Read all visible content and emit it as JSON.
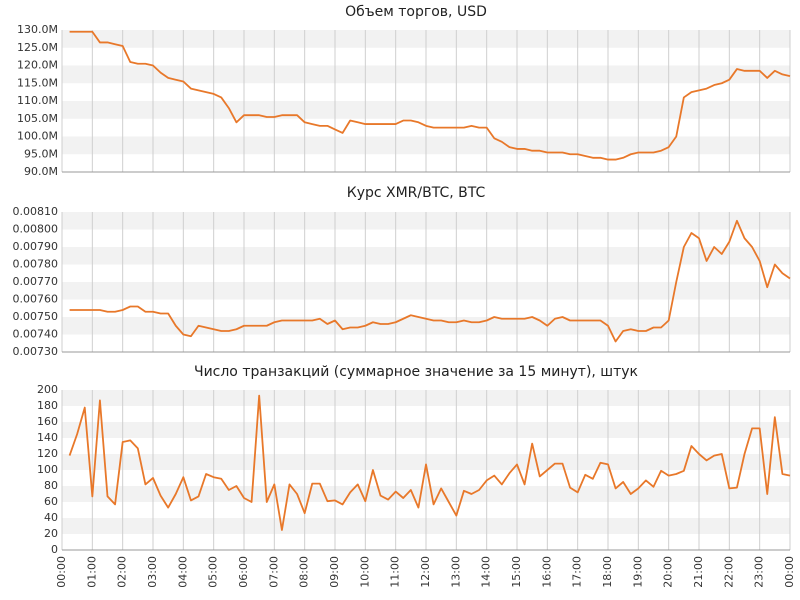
{
  "chart_data": [
    {
      "type": "line",
      "title": "Объем торгов, USD",
      "color": "#e8782a",
      "grid": true,
      "xlim": [
        0,
        24
      ],
      "ylim": [
        90000000,
        130000000
      ],
      "yticks": [
        {
          "value": 90000000,
          "label": "90.0M"
        },
        {
          "value": 95000000,
          "label": "95.0M"
        },
        {
          "value": 100000000,
          "label": "100.0M"
        },
        {
          "value": 105000000,
          "label": "105.0M"
        },
        {
          "value": 110000000,
          "label": "110.0M"
        },
        {
          "value": 115000000,
          "label": "115.0M"
        },
        {
          "value": 120000000,
          "label": "120.0M"
        },
        {
          "value": 125000000,
          "label": "125.0M"
        },
        {
          "value": 130000000,
          "label": "130.0M"
        }
      ],
      "values": [
        129500000,
        129500000,
        129500000,
        129500000,
        126500000,
        126500000,
        126000000,
        125500000,
        121000000,
        120500000,
        120500000,
        120000000,
        118000000,
        116500000,
        116000000,
        115500000,
        113500000,
        113000000,
        112500000,
        112000000,
        111000000,
        108000000,
        104000000,
        106000000,
        106000000,
        106000000,
        105500000,
        105500000,
        106000000,
        106000000,
        106000000,
        104000000,
        103500000,
        103000000,
        103000000,
        102000000,
        101000000,
        104500000,
        104000000,
        103500000,
        103500000,
        103500000,
        103500000,
        103500000,
        104500000,
        104500000,
        104000000,
        103000000,
        102500000,
        102500000,
        102500000,
        102500000,
        102500000,
        103000000,
        102500000,
        102500000,
        99500000,
        98500000,
        97000000,
        96500000,
        96500000,
        96000000,
        96000000,
        95500000,
        95500000,
        95500000,
        95000000,
        95000000,
        94500000,
        94000000,
        94000000,
        93500000,
        93500000,
        94000000,
        95000000,
        95500000,
        95500000,
        95500000,
        96000000,
        97000000,
        100000000,
        111000000,
        112500000,
        113000000,
        113500000,
        114500000,
        115000000,
        116000000,
        119000000,
        118500000,
        118500000,
        118500000,
        116500000,
        118500000,
        117500000,
        117000000
      ]
    },
    {
      "type": "line",
      "title": "Курс XMR/BTC, BTC",
      "color": "#e8782a",
      "grid": true,
      "xlim": [
        0,
        24
      ],
      "ylim": [
        0.0073,
        0.0081
      ],
      "yticks": [
        {
          "value": 0.0073,
          "label": "0.00730"
        },
        {
          "value": 0.0074,
          "label": "0.00740"
        },
        {
          "value": 0.0075,
          "label": "0.00750"
        },
        {
          "value": 0.0076,
          "label": "0.00760"
        },
        {
          "value": 0.0077,
          "label": "0.00770"
        },
        {
          "value": 0.0078,
          "label": "0.00780"
        },
        {
          "value": 0.0079,
          "label": "0.00790"
        },
        {
          "value": 0.008,
          "label": "0.00800"
        },
        {
          "value": 0.0081,
          "label": "0.00810"
        }
      ],
      "values": [
        0.00754,
        0.00754,
        0.00754,
        0.00754,
        0.00754,
        0.00753,
        0.00753,
        0.00754,
        0.00756,
        0.00756,
        0.00753,
        0.00753,
        0.00752,
        0.00752,
        0.00745,
        0.0074,
        0.00739,
        0.00745,
        0.00744,
        0.00743,
        0.00742,
        0.00742,
        0.00743,
        0.00745,
        0.00745,
        0.00745,
        0.00745,
        0.00747,
        0.00748,
        0.00748,
        0.00748,
        0.00748,
        0.00748,
        0.00749,
        0.00746,
        0.00748,
        0.00743,
        0.00744,
        0.00744,
        0.00745,
        0.00747,
        0.00746,
        0.00746,
        0.00747,
        0.00749,
        0.00751,
        0.0075,
        0.00749,
        0.00748,
        0.00748,
        0.00747,
        0.00747,
        0.00748,
        0.00747,
        0.00747,
        0.00748,
        0.0075,
        0.00749,
        0.00749,
        0.00749,
        0.00749,
        0.0075,
        0.00748,
        0.00745,
        0.00749,
        0.0075,
        0.00748,
        0.00748,
        0.00748,
        0.00748,
        0.00748,
        0.00745,
        0.00736,
        0.00742,
        0.00743,
        0.00742,
        0.00742,
        0.00744,
        0.00744,
        0.00748,
        0.0077,
        0.0079,
        0.00798,
        0.00795,
        0.00782,
        0.0079,
        0.00786,
        0.00793,
        0.00805,
        0.00795,
        0.0079,
        0.00782,
        0.00767,
        0.0078,
        0.00775,
        0.00772
      ]
    },
    {
      "type": "line",
      "title": "Число транзакций (суммарное значение за 15 минут), штук",
      "color": "#e8782a",
      "grid": true,
      "xlim": [
        0,
        24
      ],
      "ylim": [
        0,
        200
      ],
      "yticks": [
        0,
        20,
        40,
        60,
        80,
        100,
        120,
        140,
        160,
        180,
        200
      ],
      "xticks": [
        {
          "value": 0,
          "label": "00:00"
        },
        {
          "value": 1,
          "label": "01:00"
        },
        {
          "value": 2,
          "label": "02:00"
        },
        {
          "value": 3,
          "label": "03:00"
        },
        {
          "value": 4,
          "label": "04:00"
        },
        {
          "value": 5,
          "label": "05:00"
        },
        {
          "value": 6,
          "label": "06:00"
        },
        {
          "value": 7,
          "label": "07:00"
        },
        {
          "value": 8,
          "label": "08:00"
        },
        {
          "value": 9,
          "label": "09:00"
        },
        {
          "value": 10,
          "label": "10:00"
        },
        {
          "value": 11,
          "label": "11:00"
        },
        {
          "value": 12,
          "label": "12:00"
        },
        {
          "value": 13,
          "label": "13:00"
        },
        {
          "value": 14,
          "label": "14:00"
        },
        {
          "value": 15,
          "label": "15:00"
        },
        {
          "value": 16,
          "label": "16:00"
        },
        {
          "value": 17,
          "label": "17:00"
        },
        {
          "value": 18,
          "label": "18:00"
        },
        {
          "value": 19,
          "label": "19:00"
        },
        {
          "value": 20,
          "label": "20:00"
        },
        {
          "value": 21,
          "label": "21:00"
        },
        {
          "value": 22,
          "label": "22:00"
        },
        {
          "value": 23,
          "label": "23:00"
        },
        {
          "value": 24,
          "label": "00:00"
        }
      ],
      "x": [
        0.25,
        0.5,
        0.75,
        1,
        1.25,
        1.5,
        1.75,
        2,
        2.25,
        2.5,
        2.75,
        3,
        3.25,
        3.5,
        3.75,
        4,
        4.25,
        4.5,
        4.75,
        5,
        5.25,
        5.5,
        5.75,
        6,
        6.25,
        6.5,
        6.75,
        7,
        7.25,
        7.5,
        7.75,
        8,
        8.25,
        8.5,
        8.75,
        9,
        9.25,
        9.5,
        9.75,
        10,
        10.25,
        10.5,
        10.75,
        11,
        11.25,
        11.5,
        11.75,
        12,
        12.25,
        12.5,
        12.75,
        13,
        13.25,
        13.5,
        13.75,
        14,
        14.25,
        14.5,
        14.75,
        15,
        15.25,
        15.5,
        15.75,
        16,
        16.25,
        16.5,
        16.75,
        17,
        17.25,
        17.5,
        17.75,
        18,
        18.25,
        18.5,
        18.75,
        19,
        19.25,
        19.5,
        19.75,
        20,
        20.25,
        20.5,
        20.75,
        21,
        21.25,
        21.5,
        21.75,
        22,
        22.25,
        22.5,
        22.75,
        23,
        23.25,
        23.5,
        23.75,
        24
      ],
      "values": [
        118,
        145,
        178,
        67,
        187,
        67,
        57,
        135,
        137,
        127,
        82,
        90,
        68,
        53,
        70,
        91,
        62,
        67,
        95,
        91,
        89,
        75,
        80,
        65,
        60,
        193,
        60,
        82,
        25,
        82,
        70,
        46,
        83,
        83,
        61,
        62,
        57,
        72,
        82,
        61,
        100,
        68,
        63,
        73,
        65,
        75,
        53,
        107,
        57,
        77,
        60,
        43,
        74,
        70,
        75,
        87,
        93,
        82,
        96,
        107,
        82,
        133,
        92,
        100,
        108,
        108,
        78,
        72,
        94,
        89,
        109,
        107,
        77,
        85,
        70,
        77,
        87,
        79,
        99,
        93,
        95,
        99,
        130,
        120,
        112,
        118,
        120,
        77,
        78,
        120,
        152,
        152,
        70,
        166,
        95,
        93
      ]
    }
  ]
}
